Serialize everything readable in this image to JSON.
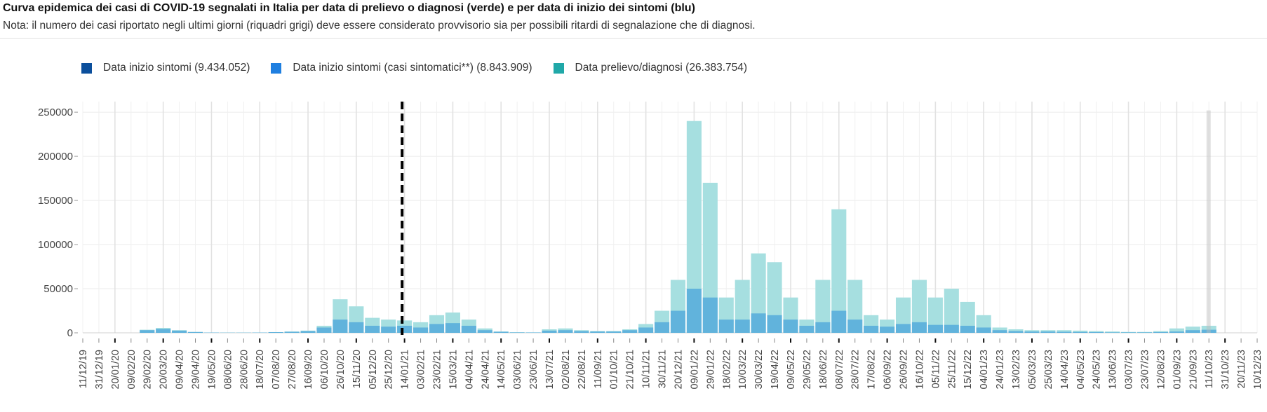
{
  "header": {
    "title": "Curva epidemica dei casi di COVID-19 segnalati in Italia per data di prelievo o diagnosi (verde) e per data di inizio dei sintomi (blu)",
    "subtitle": "Nota: il numero dei casi riportato negli ultimi giorni (riquadri grigi) deve essere considerato provvisorio sia per possibili ritardi di segnalazione che di diagnosi."
  },
  "chart_data": {
    "type": "bar",
    "title": "",
    "xlabel": "",
    "ylabel": "",
    "ylim": [
      0,
      262000
    ],
    "y_ticks": [
      0,
      50000,
      100000,
      150000,
      200000,
      250000
    ],
    "x_tick_labels": [
      "11/12/19",
      "31/12/19",
      "20/01/20",
      "09/02/20",
      "29/02/20",
      "20/03/20",
      "09/04/20",
      "29/04/20",
      "19/05/20",
      "08/06/20",
      "28/06/20",
      "18/07/20",
      "07/08/20",
      "27/08/20",
      "16/09/20",
      "06/10/20",
      "26/10/20",
      "15/11/20",
      "05/12/20",
      "25/12/20",
      "14/01/21",
      "03/02/21",
      "23/02/21",
      "15/03/21",
      "04/04/21",
      "24/04/21",
      "14/05/21",
      "03/06/21",
      "23/06/21",
      "13/07/21",
      "02/08/21",
      "22/08/21",
      "11/09/21",
      "01/10/21",
      "21/10/21",
      "10/11/21",
      "30/11/21",
      "20/12/21",
      "09/01/22",
      "29/01/22",
      "18/02/22",
      "10/03/22",
      "30/03/22",
      "19/04/22",
      "09/05/22",
      "29/05/22",
      "18/06/22",
      "08/07/22",
      "28/07/22",
      "17/08/22",
      "06/09/22",
      "26/09/22",
      "16/10/22",
      "05/11/22",
      "25/11/22",
      "15/12/22",
      "04/01/23",
      "24/01/23",
      "13/02/23",
      "05/03/23",
      "25/03/23",
      "14/04/23",
      "04/05/23",
      "24/05/23",
      "13/06/23",
      "03/07/23",
      "23/07/23",
      "12/08/23",
      "01/09/23",
      "21/09/23",
      "11/10/23",
      "31/10/23",
      "20/11/23",
      "10/12/23"
    ],
    "legend_position": "top-left",
    "grid": true,
    "series": [
      {
        "name": "Data inizio sintomi (9.434.052)",
        "color": "#0b4f9c",
        "values": [
          0,
          0,
          0,
          0,
          3000,
          4500,
          2500,
          900,
          300,
          200,
          200,
          300,
          800,
          1200,
          2000,
          6000,
          15000,
          12000,
          8000,
          7000,
          8000,
          6000,
          10000,
          11000,
          8000,
          3000,
          1200,
          500,
          400,
          2500,
          3000,
          2000,
          1500,
          1500,
          3000,
          6000,
          12000,
          25000,
          50000,
          40000,
          15000,
          15000,
          22000,
          20000,
          15000,
          8000,
          12000,
          25000,
          15000,
          8000,
          7000,
          10000,
          12000,
          9000,
          9000,
          8000,
          6000,
          3000,
          2000,
          1500,
          1500,
          1200,
          1000,
          800,
          500,
          500,
          500,
          800,
          1500,
          3000,
          3500
        ]
      },
      {
        "name": "Data inizio sintomi (casi sintomatici**) (8.843.909)",
        "color": "#1f7fe0",
        "values": [
          0,
          0,
          0,
          0,
          2800,
          4200,
          2300,
          800,
          300,
          200,
          200,
          300,
          700,
          1100,
          1800,
          5500,
          14000,
          11000,
          7500,
          6500,
          7500,
          5500,
          9500,
          10000,
          7500,
          2800,
          1100,
          500,
          400,
          2300,
          2800,
          1900,
          1400,
          1400,
          2800,
          5500,
          11000,
          23000,
          46000,
          37000,
          14000,
          14000,
          20000,
          18000,
          14000,
          7500,
          11000,
          23000,
          14000,
          7500,
          6500,
          9500,
          11000,
          8500,
          8500,
          7500,
          5500,
          2800,
          1900,
          1400,
          1400,
          1100,
          900,
          700,
          500,
          500,
          500,
          700,
          1400,
          2800,
          3300
        ]
      },
      {
        "name": "Data prelievo/diagnosi (26.383.754)",
        "color": "#20a8a8",
        "values": [
          0,
          0,
          0,
          0,
          3500,
          5500,
          3000,
          1000,
          300,
          200,
          200,
          300,
          800,
          1500,
          2500,
          8000,
          38000,
          30000,
          17000,
          15000,
          14000,
          12000,
          20000,
          23000,
          15000,
          5000,
          1500,
          600,
          500,
          4000,
          5000,
          3000,
          2000,
          2000,
          4000,
          10000,
          25000,
          60000,
          240000,
          170000,
          40000,
          60000,
          90000,
          80000,
          40000,
          15000,
          60000,
          140000,
          60000,
          20000,
          15000,
          40000,
          60000,
          40000,
          50000,
          35000,
          20000,
          6000,
          4000,
          3000,
          3000,
          3000,
          2500,
          2000,
          1500,
          1000,
          1000,
          2000,
          5000,
          7000,
          8000
        ]
      }
    ],
    "annotations": [
      {
        "type": "dashed-vertical-line",
        "at": "11/01/21"
      },
      {
        "type": "grey-provisional-box",
        "from": "08/10/23",
        "to": "11/10/23"
      }
    ]
  }
}
